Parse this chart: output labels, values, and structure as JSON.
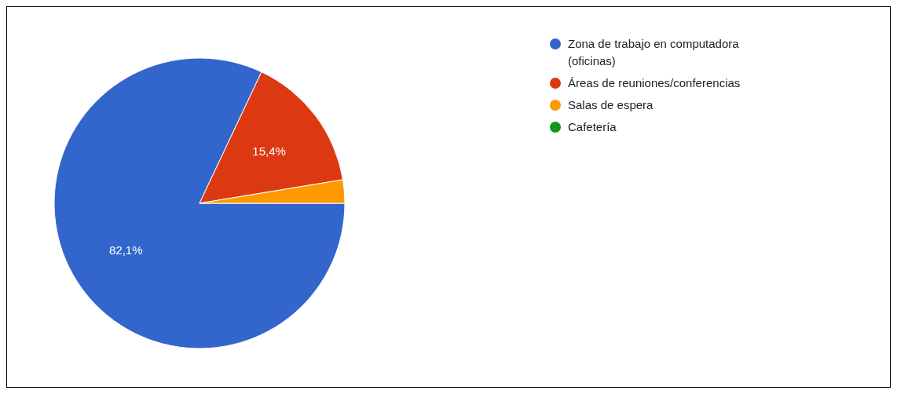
{
  "chart_data": {
    "type": "pie",
    "categories": [
      "Zona de trabajo en computadora (oficinas)",
      "Áreas de reuniones/conferencias",
      "Salas de espera",
      "Cafetería"
    ],
    "values": [
      82.1,
      15.4,
      2.6,
      0
    ],
    "colors": [
      "#3366cc",
      "#dc3912",
      "#ff9900",
      "#109618"
    ],
    "value_labels": [
      "82,1%",
      "15,4%",
      null,
      null
    ],
    "legend": "top right"
  }
}
